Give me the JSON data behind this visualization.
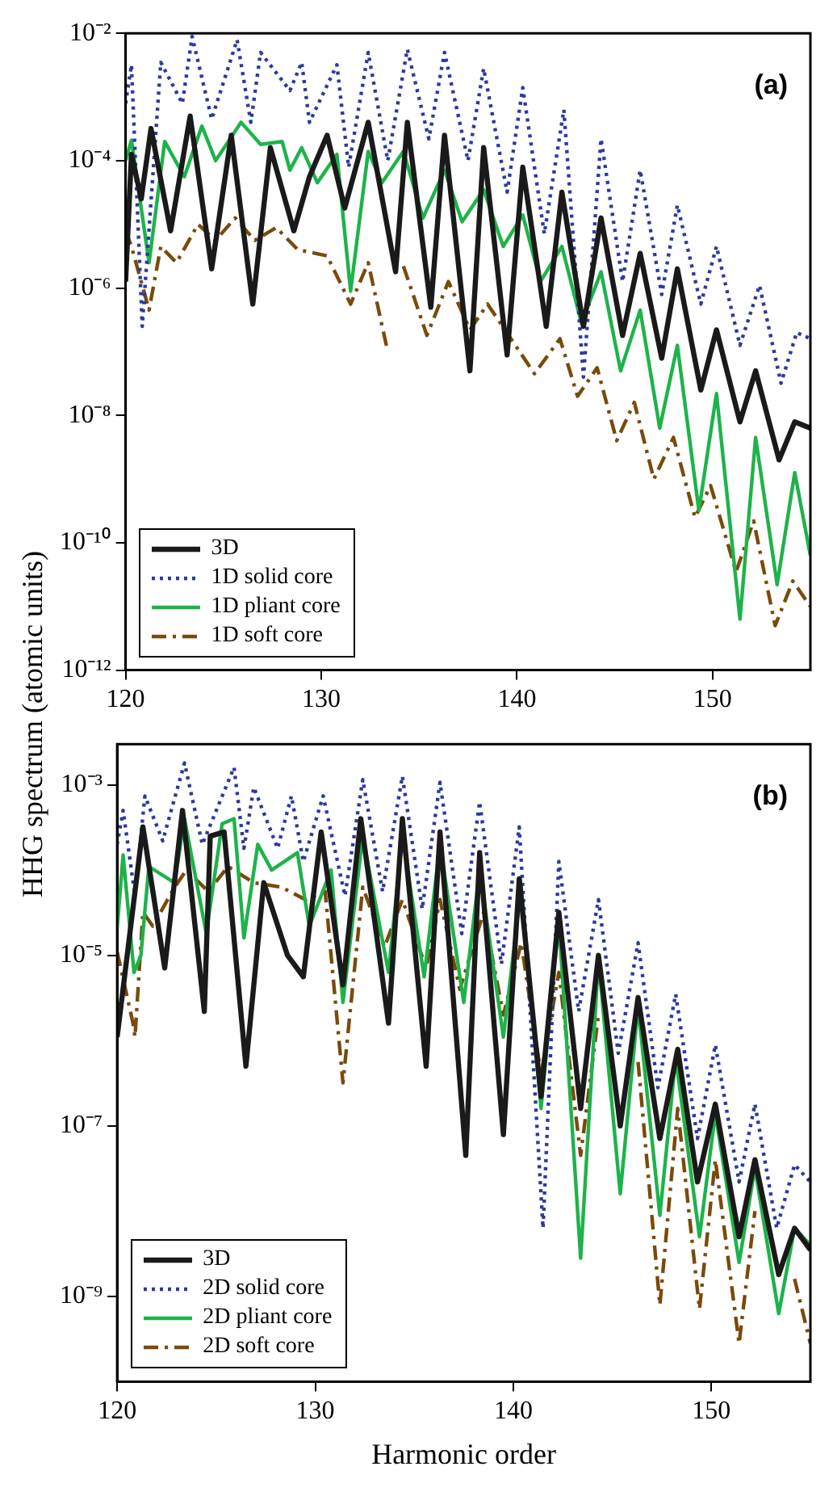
{
  "chart_data": [
    {
      "type": "line",
      "annotations": [
        "(a)"
      ],
      "ylabel": "HHG spectrum (atomic units)",
      "xlim": [
        120,
        155
      ],
      "xticks": [
        120,
        130,
        140,
        150
      ],
      "ylim": [
        1e-12,
        0.01
      ],
      "yticks": [
        {
          "value": 0.01,
          "label": "10⁻²"
        },
        {
          "value": 0.0001,
          "label": "10⁻⁴"
        },
        {
          "value": 1e-06,
          "label": "10⁻⁶"
        },
        {
          "value": 1e-08,
          "label": "10⁻⁸"
        },
        {
          "value": 1e-10,
          "label": "10⁻¹⁰"
        },
        {
          "value": 1e-12,
          "label": "10⁻¹²"
        }
      ],
      "log": "y",
      "legend": "bottom left",
      "marker": "none",
      "series": [
        {
          "name": "3D",
          "color": "#1a1a1a",
          "line_style": "solid",
          "x": [
            120,
            120.3,
            120.8,
            121.3,
            122.3,
            123.3,
            124.4,
            125.4,
            126.5,
            127.4,
            128.6,
            129.4,
            130.3,
            131.2,
            132.4,
            133.8,
            134.4,
            135.6,
            136.3,
            137.6,
            138.3,
            139.5,
            140.3,
            141.5,
            142.3,
            143.4,
            144.3,
            145.4,
            146.3,
            147.4,
            148.2,
            149.4,
            150.2,
            151.4,
            152.2,
            153.4,
            154.2,
            155
          ],
          "values": [
            1.26e-06,
            0.000126,
            2.5e-05,
            0.00032,
            7.9e-06,
            0.0005,
            2e-06,
            0.00025,
            5.6e-07,
            0.00016,
            7.9e-06,
            5.6e-05,
            0.00025,
            1.8e-05,
            0.0004,
            1.8e-06,
            0.0004,
            5e-07,
            0.00025,
            5e-08,
            0.00016,
            8.9e-08,
            7.9e-05,
            2.5e-07,
            3.2e-05,
            2.5e-07,
            1.26e-05,
            1.8e-07,
            3.5e-06,
            7.9e-08,
            2e-06,
            2.5e-08,
            2.2e-07,
            7.9e-09,
            5e-08,
            2e-09,
            7.9e-09,
            6.3e-09
          ]
        },
        {
          "name": "1D solid core",
          "color": "#2b3a9e",
          "line_style": "dotted",
          "x": [
            120,
            120.3,
            120.85,
            121.8,
            122.9,
            123.4,
            124.4,
            125.7,
            126.4,
            126.9,
            128.4,
            129,
            129.4,
            130.8,
            131.4,
            132.4,
            133.4,
            134.4,
            135.5,
            136.3,
            137.5,
            138.3,
            139.5,
            140.3,
            141.4,
            142.4,
            143.4,
            144.3,
            145.4,
            146.3,
            147.4,
            148.2,
            149.4,
            150.2,
            151.4,
            152.4,
            153.5,
            154.3,
            155
          ],
          "values": [
            0.00079,
            0.0032,
            2.5e-07,
            0.0035,
            0.00079,
            0.0089,
            0.00045,
            0.0079,
            0.0004,
            0.005,
            0.00126,
            0.0035,
            0.0004,
            0.0032,
            7.9e-05,
            0.005,
            0.0001,
            0.0056,
            0.00022,
            0.005,
            0.0001,
            0.0028,
            3.2e-05,
            0.0014,
            7.1e-06,
            0.00063,
            4e-08,
            0.00022,
            1.26e-06,
            7.1e-05,
            7.9e-07,
            2e-05,
            5.6e-07,
            4.5e-06,
            1.26e-07,
            1.1e-06,
            3.2e-08,
            2e-07,
            1.6e-07
          ]
        },
        {
          "name": "1D pliant core",
          "color": "#1db34a",
          "line_style": "solid",
          "x": [
            120,
            120.3,
            121.2,
            122,
            123,
            123.9,
            124.6,
            125.9,
            126.9,
            128,
            128.4,
            129,
            129.8,
            130.8,
            131.5,
            132.4,
            133.1,
            134.2,
            135.2,
            136.3,
            137.2,
            138.3,
            139.3,
            140.3,
            141.2,
            142.3,
            143.3,
            144.3,
            145.3,
            146.3,
            147.3,
            148.2,
            149.3,
            150.2,
            151.4,
            152.2,
            153.3,
            154.2,
            155
          ],
          "values": [
            0.0001,
            0.00021,
            2.5e-06,
            0.0002,
            5.6e-05,
            0.00035,
            0.0001,
            0.0004,
            0.00018,
            0.0002,
            7.1e-05,
            0.00016,
            4.5e-05,
            0.000126,
            8.9e-07,
            0.00014,
            4.5e-05,
            0.00014,
            1.26e-05,
            7.1e-05,
            1.1e-05,
            3.5e-05,
            4.5e-06,
            1.4e-05,
            1.26e-06,
            4.5e-06,
            2.8e-07,
            1.8e-06,
            5e-08,
            4.5e-07,
            6.3e-09,
            1.26e-07,
            3.2e-10,
            2.2e-08,
            6.3e-12,
            4.5e-09,
            2.2e-11,
            1.26e-09,
            6.3e-11
          ]
        },
        {
          "name": "1D soft core",
          "color": "#7a4a0a",
          "line_style": "dashed",
          "x": [
            120,
            120.3,
            121.2,
            121.8,
            122.6,
            123.7,
            124.6,
            125.6,
            126.6,
            127.7,
            128.8,
            130.3,
            131.5,
            132.4,
            133.4,
            133.5,
            134.2,
            135.4,
            136.5,
            137.6,
            138.5,
            140.9,
            142.2,
            143.1,
            144.1,
            145.1,
            146,
            147,
            148,
            149.1,
            149.9,
            151.2,
            152.1,
            153.2,
            154.1,
            155
          ],
          "values": [
            7.9e-06,
            4.5e-06,
            4.5e-07,
            4.5e-06,
            2.5e-06,
            1e-05,
            5.6e-06,
            1.26e-05,
            5.6e-06,
            8.9e-06,
            4e-06,
            3.2e-06,
            5.6e-07,
            2.5e-06,
            1e-07,
            null,
            2.2e-06,
            1.8e-07,
            1.26e-06,
            2.2e-07,
            5.6e-07,
            4.5e-08,
            1.6e-07,
            2e-08,
            5.6e-08,
            4e-09,
            1.6e-08,
            1e-09,
            4.5e-09,
            2.5e-10,
            7.9e-10,
            3.5e-11,
            2.2e-10,
            5e-12,
            2.5e-11,
            1e-11
          ]
        }
      ]
    },
    {
      "type": "line",
      "annotations": [
        "(b)"
      ],
      "xlabel": "Harmonic order",
      "xlim": [
        120,
        155
      ],
      "xticks": [
        120,
        130,
        140,
        150
      ],
      "ylim": [
        1e-10,
        0.003
      ],
      "yticks": [
        {
          "value": 0.001,
          "label": "10⁻³"
        },
        {
          "value": 1e-05,
          "label": "10⁻⁵"
        },
        {
          "value": 1e-07,
          "label": "10⁻⁷"
        },
        {
          "value": 1e-09,
          "label": "10⁻⁹"
        }
      ],
      "log": "y",
      "legend": "bottom left",
      "marker": "none",
      "series": [
        {
          "name": "3D",
          "color": "#1a1a1a",
          "line_style": "solid",
          "x": [
            120,
            121.3,
            122.4,
            123.3,
            124.4,
            124.7,
            125.4,
            126.5,
            127.4,
            128.6,
            129.4,
            130.3,
            131.4,
            132.3,
            133.7,
            134.4,
            135.6,
            136.3,
            137.6,
            138.3,
            139.5,
            140.3,
            141.4,
            142.3,
            143.4,
            144.3,
            145.4,
            146.3,
            147.4,
            148.3,
            149.3,
            150.2,
            151.4,
            152.2,
            153.4,
            154.2,
            155
          ],
          "values": [
            1.1e-06,
            0.00032,
            7.1e-06,
            0.0005,
            2.2e-06,
            0.00025,
            0.00028,
            5e-07,
            7.1e-05,
            1e-05,
            5.6e-06,
            0.00028,
            4.5e-06,
            0.0004,
            1.6e-06,
            0.0004,
            5e-07,
            0.00028,
            4.5e-08,
            0.00016,
            7.9e-08,
            7.9e-05,
            2.2e-07,
            3.2e-05,
            1.6e-07,
            1e-05,
            1e-07,
            3.2e-06,
            7.1e-08,
            7.9e-07,
            2.2e-08,
            1.8e-07,
            5e-09,
            4e-08,
            1.8e-09,
            6.3e-09,
            3.5e-09
          ]
        },
        {
          "name": "2D solid core",
          "color": "#2b3a9e",
          "line_style": "dotted",
          "x": [
            120,
            120.3,
            120.9,
            121.4,
            122.3,
            123.4,
            124.3,
            125.9,
            126.4,
            126.9,
            128.1,
            128.8,
            129.4,
            130.4,
            131.5,
            132.4,
            133.4,
            134.4,
            135.4,
            136.3,
            137.4,
            138.3,
            139.4,
            140.3,
            141.5,
            142.3,
            143.3,
            144.3,
            145.3,
            146.3,
            147.3,
            148.2,
            149.3,
            150.2,
            151.4,
            152.2,
            153.3,
            154.2,
            155
          ],
          "values": [
            0.0002,
            0.0005,
            5e-05,
            0.00074,
            0.00022,
            0.0018,
            0.0002,
            0.0016,
            0.00018,
            0.00093,
            0.00018,
            0.00074,
            0.000126,
            0.00074,
            5e-05,
            0.00115,
            5.6e-05,
            0.00126,
            3.5e-05,
            0.00107,
            1.8e-05,
            0.00063,
            7.9e-06,
            0.00032,
            6.3e-09,
            0.000126,
            2.2e-06,
            4.5e-05,
            7.1e-07,
            1.4e-05,
            2.8e-07,
            3.5e-06,
            7.1e-08,
            8.9e-07,
            2.2e-08,
            1.8e-07,
            6.3e-09,
            3.5e-08,
            2.2e-08
          ]
        },
        {
          "name": "2D pliant core",
          "color": "#1db34a",
          "line_style": "solid",
          "x": [
            120,
            120.3,
            120.85,
            121.2,
            121.6,
            122.9,
            123.4,
            124.5,
            125.3,
            125.9,
            126.4,
            127.1,
            127.8,
            129.1,
            129.7,
            130.8,
            131.4,
            132.4,
            133.7,
            134.4,
            135.5,
            136.3,
            137.5,
            138.3,
            139.5,
            140.4,
            141.4,
            142.3,
            143.4,
            144.3,
            145.4,
            146.3,
            147.4,
            148.2,
            149.4,
            150.2,
            151.4,
            152.2,
            153.4,
            154.2,
            155
          ],
          "values": [
            2.1e-05,
            0.00015,
            6.3e-06,
            1e-05,
            0.00011,
            7.1e-05,
            0.0004,
            1.8e-05,
            0.00035,
            0.0004,
            1.6e-05,
            0.0002,
            0.0001,
            0.00016,
            2.2e-05,
            0.0001,
            2.8e-06,
            0.00025,
            6.3e-06,
            0.00025,
            5.6e-06,
            0.0002,
            2.8e-06,
            0.0001,
            1.1e-06,
            6.3e-05,
            1.6e-07,
            2.5e-05,
            2.8e-09,
            8.9e-06,
            1.6e-08,
            2.5e-06,
            8.9e-09,
            6.3e-07,
            5e-09,
            1.4e-07,
            2.5e-09,
            3.2e-08,
            6.3e-10,
            6.3e-09,
            4e-09
          ]
        },
        {
          "name": "2D soft core",
          "color": "#7a4a0a",
          "line_style": "dashed",
          "x": [
            120,
            120.8,
            120.9,
            121.3,
            121.8,
            122.9,
            123.5,
            124.6,
            125.6,
            126.9,
            128.3,
            129.5,
            130.5,
            131.4,
            132.4,
            133.5,
            134.4,
            135.6,
            136.3,
            137.3,
            138.5,
            139.5,
            140.4,
            141.4,
            142.3,
            143.4,
            144.3,
            145.4,
            146.3,
            147.4,
            148.3,
            149.4,
            150.2,
            151.4,
            152.2,
            153.4,
            154.2,
            155
          ],
          "values": [
            1.1e-05,
            1.6e-06,
            1.1e-06,
            3.2e-05,
            2.2e-05,
            6.3e-05,
            0.0001,
            5.6e-05,
            0.00011,
            7.1e-05,
            6.3e-05,
            4.5e-05,
            5.6e-05,
            3.2e-07,
            6.3e-05,
            1.26e-05,
            4.5e-05,
            7.1e-06,
            4.5e-05,
            4e-06,
            3.2e-05,
            2e-06,
            1.4e-05,
            4e-07,
            6.3e-06,
            4.5e-08,
            2e-06,
            null,
            5.6e-07,
            7.9e-10,
            1.6e-07,
            7.1e-10,
            4e-08,
            2.8e-10,
            1e-08,
            null,
            1.6e-09,
            2.8e-10
          ]
        }
      ]
    }
  ]
}
